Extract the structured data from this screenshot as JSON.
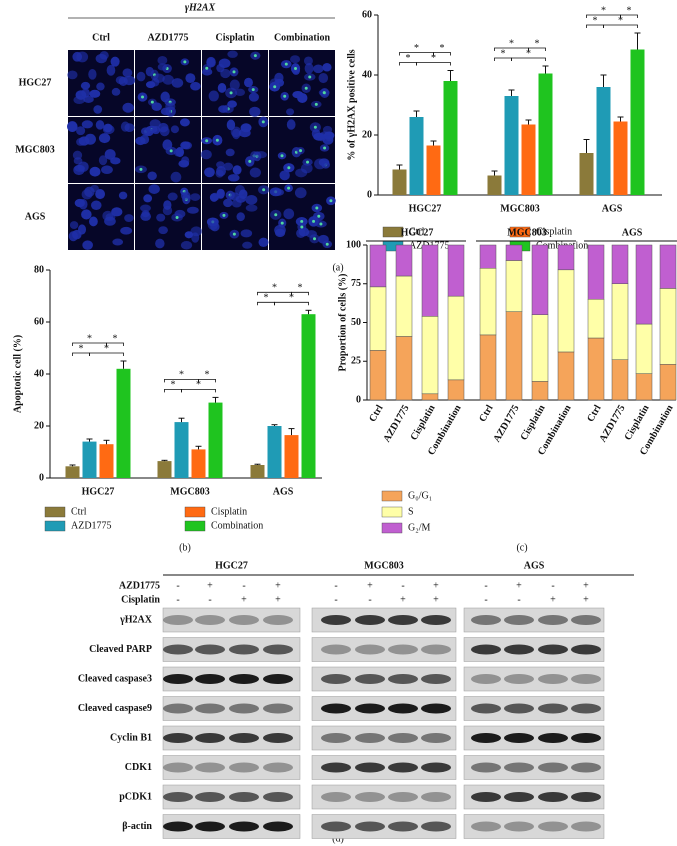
{
  "panel_labels": [
    "(a)",
    "(b)",
    "(c)",
    "(d)"
  ],
  "micrographs": {
    "title": "γH2AX",
    "columns": [
      "Ctrl",
      "AZD1775",
      "Cisplatin",
      "Combination"
    ],
    "rows": [
      "HGC27",
      "MGC803",
      "AGS"
    ]
  },
  "chart_data": [
    {
      "type": "bar",
      "y_label": "% of γH2AX positive cells",
      "categories": [
        "HGC27",
        "MGC803",
        "AGS"
      ],
      "series": [
        {
          "name": "Ctrl",
          "color": "#8b7a3a",
          "values": [
            8.5,
            6.5,
            14
          ],
          "errors": [
            1.5,
            1.5,
            4.5
          ]
        },
        {
          "name": "AZD1775",
          "color": "#1f9bb5",
          "values": [
            26,
            33,
            36
          ],
          "errors": [
            2,
            2,
            4
          ]
        },
        {
          "name": "Cisplatin",
          "color": "#ff6a13",
          "values": [
            16.5,
            23.5,
            24.5
          ],
          "errors": [
            1.5,
            1.5,
            1.5
          ]
        },
        {
          "name": "Combination",
          "color": "#1fc41f",
          "values": [
            38,
            40.5,
            48.5
          ],
          "errors": [
            3.5,
            2.5,
            5.5
          ]
        }
      ],
      "ylim": [
        0,
        60
      ],
      "yticks": [
        0,
        20,
        40,
        60
      ],
      "significance": {
        "label": "*",
        "pairs": [
          [
            0,
            2
          ],
          [
            2,
            3
          ],
          [
            0,
            1
          ],
          [
            1,
            3
          ]
        ]
      }
    },
    {
      "type": "bar",
      "y_label": "Apoptotic cell (%)",
      "categories": [
        "HGC27",
        "MGC803",
        "AGS"
      ],
      "series": [
        {
          "name": "Ctrl",
          "color": "#8b7a3a",
          "values": [
            4.5,
            6.5,
            5
          ],
          "errors": [
            0.5,
            0.3,
            0.3
          ]
        },
        {
          "name": "AZD1775",
          "color": "#1f9bb5",
          "values": [
            14,
            21.5,
            20
          ],
          "errors": [
            1,
            1.5,
            0.5
          ]
        },
        {
          "name": "Cisplatin",
          "color": "#ff6a13",
          "values": [
            13,
            11,
            16.5
          ],
          "errors": [
            1.5,
            1.2,
            2.5
          ]
        },
        {
          "name": "Combination",
          "color": "#1fc41f",
          "values": [
            42,
            29,
            63
          ],
          "errors": [
            3,
            2,
            1.5
          ]
        }
      ],
      "ylim": [
        0,
        80
      ],
      "yticks": [
        0,
        20,
        40,
        60,
        80
      ],
      "significance": {
        "label": "*",
        "pairs": [
          [
            0,
            2
          ],
          [
            2,
            3
          ],
          [
            0,
            1
          ],
          [
            1,
            3
          ]
        ]
      }
    },
    {
      "type": "stacked_bar",
      "y_label": "Proportion of cells (%)",
      "groups": [
        "HGC27",
        "MGC803",
        "AGS"
      ],
      "categories": [
        "Ctrl",
        "AZD1775",
        "Cisplatin",
        "Combination"
      ],
      "series": [
        {
          "name": "G₀/G₁",
          "color": "#f5a45a",
          "values": [
            [
              32,
              41,
              4,
              13
            ],
            [
              42,
              57,
              12,
              31
            ],
            [
              40,
              26,
              17,
              23
            ]
          ]
        },
        {
          "name": "S",
          "color": "#ffffa8",
          "values": [
            [
              41,
              39,
              50,
              54
            ],
            [
              43,
              33,
              43,
              53
            ],
            [
              25,
              49,
              32,
              49
            ]
          ]
        },
        {
          "name": "G₂/M",
          "color": "#c05fd0",
          "values": [
            [
              27,
              20,
              46,
              33
            ],
            [
              15,
              10,
              45,
              16
            ],
            [
              35,
              25,
              51,
              28
            ]
          ]
        }
      ],
      "ylim": [
        0,
        100
      ],
      "yticks": [
        0,
        25,
        50,
        75,
        100
      ]
    }
  ],
  "blot": {
    "cell_lines": [
      "HGC27",
      "MGC803",
      "AGS"
    ],
    "treatments": [
      {
        "name": "AZD1775",
        "signs": [
          "-",
          "+",
          "-",
          "+"
        ]
      },
      {
        "name": "Cisplatin",
        "signs": [
          "-",
          "-",
          "+",
          "+"
        ]
      }
    ],
    "proteins": [
      "γH2AX",
      "Cleaved PARP",
      "Cleaved caspase3",
      "Cleaved caspase9",
      "Cyclin B1",
      "CDK1",
      "pCDK1",
      "β-actin"
    ]
  }
}
